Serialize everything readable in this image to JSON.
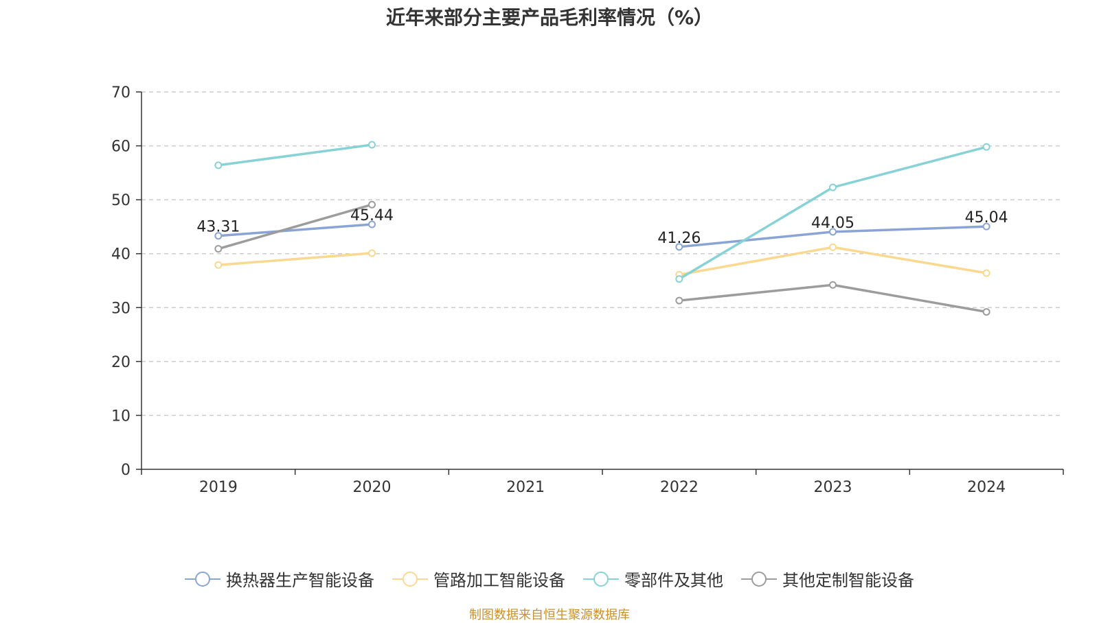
{
  "chart_data": {
    "type": "line",
    "title": "近年来部分主要产品毛利率情况（%）",
    "source": "制图数据来自恒生聚源数据库",
    "categories": [
      "2019",
      "2020",
      "2021",
      "2022",
      "2023",
      "2024"
    ],
    "ylim": [
      0,
      70
    ],
    "yticks": [
      0,
      10,
      20,
      30,
      40,
      50,
      60,
      70
    ],
    "grid": true,
    "legend_position": "bottom",
    "series": [
      {
        "name": "换热器生产智能设备",
        "color": "#8aa4d6",
        "values": [
          43.31,
          45.44,
          null,
          41.26,
          44.05,
          45.04
        ],
        "labels": [
          "43.31",
          "45.44",
          "",
          "41.26",
          "44.05",
          "45.04"
        ]
      },
      {
        "name": "管路加工智能设备",
        "color": "#fad88f",
        "values": [
          37.9,
          40.1,
          null,
          36.1,
          41.2,
          36.4
        ],
        "labels": [
          "",
          "",
          "",
          "",
          "",
          ""
        ]
      },
      {
        "name": "零部件及其他",
        "color": "#86d2d6",
        "values": [
          56.4,
          60.2,
          null,
          35.3,
          52.3,
          59.8
        ],
        "labels": [
          "",
          "",
          "",
          "",
          "",
          ""
        ]
      },
      {
        "name": "其他定制智能设备",
        "color": "#9c9c9c",
        "values": [
          40.9,
          49.1,
          null,
          31.3,
          34.2,
          29.2
        ],
        "labels": [
          "",
          "",
          "",
          "",
          "",
          ""
        ]
      }
    ]
  }
}
